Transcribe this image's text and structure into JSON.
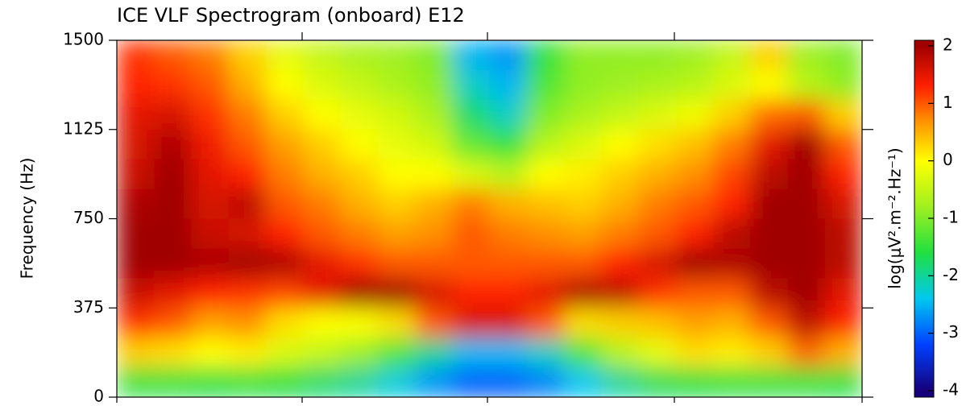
{
  "chart_data": {
    "type": "heatmap",
    "title": "ICE VLF Spectrogram (onboard) E12",
    "y_label": "Frequency (Hz)",
    "colorbar_label": "log(μV².m⁻².Hz⁻¹)",
    "categories": [
      null,
      null,
      null,
      null,
      null,
      null,
      null,
      null,
      null,
      null,
      null,
      null,
      null,
      null,
      null,
      null,
      null,
      null,
      null,
      null
    ],
    "ybins": [
      1500,
      1375,
      1250,
      1125,
      1000,
      875,
      750,
      625,
      500,
      375,
      250,
      125,
      0
    ],
    "z": [
      [
        1.2,
        1.0,
        0.8,
        0.3,
        -0.2,
        -0.5,
        -0.7,
        -0.8,
        -1,
        -2.5,
        -2.7,
        -1.5,
        -0.9,
        -0.9,
        -0.9,
        -0.8,
        -0.5,
        0.3,
        -0.8,
        -1
      ],
      [
        1.3,
        1.2,
        1.0,
        0.5,
        0,
        -0.3,
        -0.5,
        -0.7,
        -0.9,
        -2.2,
        -2.5,
        -1.3,
        -0.9,
        -0.8,
        -0.7,
        -0.6,
        -0.3,
        0,
        -0.6,
        -0.9
      ],
      [
        1.5,
        1.6,
        1.2,
        0.8,
        0.3,
        0,
        -0.2,
        -0.4,
        -0.7,
        -1.8,
        -2.2,
        -1.0,
        -0.7,
        -0.5,
        -0.3,
        -0.1,
        0.3,
        0.9,
        1.0,
        0.3
      ],
      [
        1.6,
        1.9,
        1.4,
        1.0,
        0.6,
        0.3,
        0,
        -0.2,
        -0.4,
        -1.2,
        -1.5,
        -0.6,
        -0.3,
        0,
        0.2,
        0.4,
        0.8,
        1.5,
        2.1,
        1.0
      ],
      [
        1.7,
        2.1,
        1.5,
        1.3,
        0.8,
        0.5,
        0.3,
        0,
        0,
        -0.3,
        -0.6,
        0,
        0.1,
        0.3,
        0.5,
        0.7,
        1.1,
        1.8,
        2.2,
        1.3
      ],
      [
        1.9,
        2.2,
        1.6,
        1.8,
        1.0,
        0.8,
        0.5,
        0.3,
        0.5,
        0.8,
        0.5,
        0.4,
        0.3,
        0.5,
        0.8,
        1.0,
        1.3,
        2.2,
        2.2,
        1.6
      ],
      [
        2.1,
        2.2,
        1.7,
        1.6,
        1.3,
        1.0,
        0.8,
        0.6,
        0.7,
        1.0,
        0.8,
        0.7,
        0.6,
        0.8,
        1.0,
        1.3,
        1.8,
        2.2,
        2.2,
        1.8
      ],
      [
        2.2,
        2.0,
        1.9,
        2.0,
        1.9,
        1.5,
        1.2,
        1.0,
        1.0,
        1.0,
        1.0,
        1.0,
        1.0,
        1.3,
        1.6,
        2.0,
        1.9,
        2.2,
        2.2,
        1.8
      ],
      [
        1.7,
        1.5,
        1.3,
        1.2,
        1.1,
        1.5,
        2.0,
        2.0,
        1.6,
        1.3,
        1.3,
        1.5,
        1.9,
        1.8,
        1.2,
        1.0,
        1.0,
        1.8,
        2.1,
        1.5
      ],
      [
        1.2,
        1.0,
        0.6,
        0.7,
        0.2,
        0,
        0,
        0.2,
        1.0,
        1.6,
        1.6,
        1.0,
        0.2,
        0.3,
        0.4,
        0.6,
        0.5,
        1.0,
        1.8,
        1.3
      ],
      [
        0.3,
        0.2,
        0,
        0.1,
        -0.3,
        -0.5,
        -0.8,
        -1.3,
        -2,
        -2.5,
        -2.5,
        -2.2,
        -1.3,
        -0.6,
        -0.2,
        0.2,
        0.1,
        0.3,
        0.9,
        0.5
      ],
      [
        -1.5,
        -1.5,
        -1.6,
        -1.5,
        -1.6,
        -1.8,
        -2,
        -2.3,
        -2.7,
        -3.0,
        -3.0,
        -2.8,
        -2.4,
        -2,
        -1.7,
        -1.6,
        -1.5,
        -1.5,
        -1.5,
        -1.6
      ]
    ],
    "ylim": [
      0,
      1500
    ],
    "yticks": [
      0,
      375,
      750,
      1125,
      1500
    ],
    "zlim": [
      -4,
      2
    ],
    "zticks": [
      -4,
      -3,
      -2,
      -1,
      0,
      1,
      2
    ],
    "colorscale": [
      [
        -4,
        "#16007a"
      ],
      [
        -3.2,
        "#0040ff"
      ],
      [
        -2.4,
        "#00c8f0"
      ],
      [
        -1.6,
        "#20e040"
      ],
      [
        -0.8,
        "#a0f020"
      ],
      [
        0,
        "#ffff00"
      ],
      [
        0.7,
        "#ff9000"
      ],
      [
        1.3,
        "#ff2000"
      ],
      [
        2,
        "#a00000"
      ]
    ]
  }
}
